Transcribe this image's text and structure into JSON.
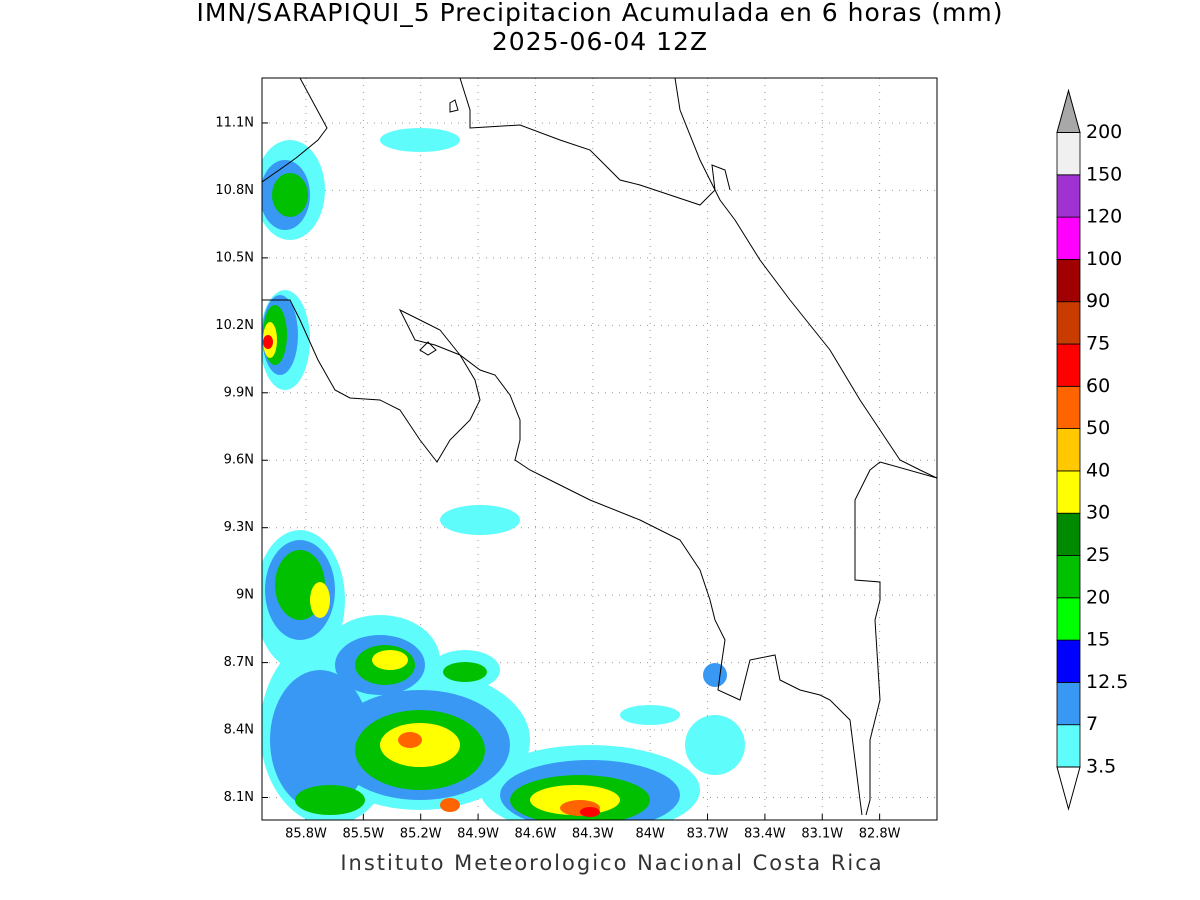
{
  "header": {
    "title": "IMN/SARAPIQUI_5 Precipitacion Acumulada en 6 horas (mm)",
    "subtitle": "2025-06-04 12Z"
  },
  "map": {
    "xlim": [
      -86.03,
      -82.5
    ],
    "ylim": [
      8.0,
      11.3
    ],
    "grid": true,
    "xticks": [
      {
        "value": -85.8,
        "label": "85.8W"
      },
      {
        "value": -85.5,
        "label": "85.5W"
      },
      {
        "value": -85.2,
        "label": "85.2W"
      },
      {
        "value": -84.9,
        "label": "84.9W"
      },
      {
        "value": -84.6,
        "label": "84.6W"
      },
      {
        "value": -84.3,
        "label": "84.3W"
      },
      {
        "value": -84,
        "label": "84W"
      },
      {
        "value": -83.7,
        "label": "83.7W"
      },
      {
        "value": -83.4,
        "label": "83.4W"
      },
      {
        "value": -83.1,
        "label": "83.1W"
      },
      {
        "value": -82.8,
        "label": "82.8W"
      }
    ],
    "yticks": [
      {
        "value": 8.1,
        "label": "8.1N"
      },
      {
        "value": 8.4,
        "label": "8.4N"
      },
      {
        "value": 8.7,
        "label": "8.7N"
      },
      {
        "value": 9,
        "label": "9N"
      },
      {
        "value": 9.3,
        "label": "9.3N"
      },
      {
        "value": 9.6,
        "label": "9.6N"
      },
      {
        "value": 9.9,
        "label": "9.9N"
      },
      {
        "value": 10.2,
        "label": "10.2N"
      },
      {
        "value": 10.5,
        "label": "10.5N"
      },
      {
        "value": 10.8,
        "label": "10.8N"
      },
      {
        "value": 11.1,
        "label": "11.1N"
      }
    ]
  },
  "colorbar": {
    "levels": [
      3.5,
      7,
      12.5,
      15,
      20,
      25,
      30,
      40,
      50,
      60,
      75,
      90,
      100,
      120,
      150,
      200
    ],
    "colors": [
      "#5ffcfc",
      "#3a98f5",
      "#0000ff",
      "#00ff00",
      "#00c000",
      "#008a00",
      "#ffff00",
      "#ffc800",
      "#ff6400",
      "#ff0000",
      "#c83c00",
      "#a00000",
      "#ff00ff",
      "#a032d2",
      "#f0f0f0"
    ],
    "over_color": "#a8a8a8",
    "under_color": "#ffffff"
  },
  "footer": "Instituto Meteorologico Nacional Costa Rica"
}
